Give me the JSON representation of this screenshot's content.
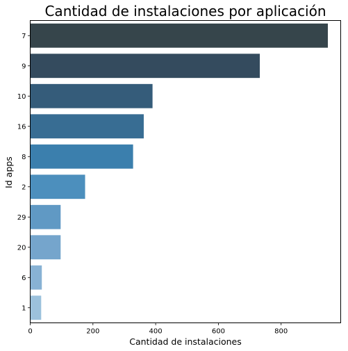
{
  "chart_data": {
    "type": "bar",
    "orientation": "horizontal",
    "title": "Cantidad de instalaciones por aplicación",
    "xlabel": "Cantidad de instalaciones",
    "ylabel": "Id apps",
    "categories": [
      "7",
      "9",
      "10",
      "16",
      "8",
      "2",
      "29",
      "20",
      "6",
      "1"
    ],
    "values": [
      949,
      732,
      390,
      362,
      328,
      175,
      97,
      97,
      37,
      35
    ],
    "xlim": [
      0,
      990
    ],
    "xticks": [
      "0",
      "200",
      "400",
      "600",
      "800"
    ],
    "grid": false,
    "legend": "none",
    "colors": [
      "#36454b",
      "#344b5e",
      "#355c7a",
      "#386d93",
      "#3b7fad",
      "#4c8fbd",
      "#6099c4",
      "#75a5cc",
      "#88b2d4",
      "#9cc1dc"
    ]
  }
}
